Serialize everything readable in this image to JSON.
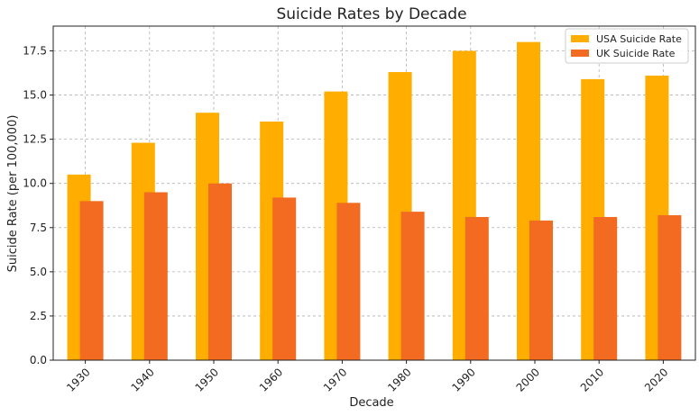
{
  "chart_data": {
    "type": "bar",
    "title": "Suicide Rates by Decade",
    "xlabel": "Decade",
    "ylabel": "Suicide Rate (per 100,000)",
    "categories": [
      "1930",
      "1940",
      "1950",
      "1960",
      "1970",
      "1980",
      "1990",
      "2000",
      "2010",
      "2020"
    ],
    "series": [
      {
        "name": "USA Suicide Rate",
        "color": "#ffae00",
        "values": [
          10.5,
          12.3,
          14.0,
          13.5,
          15.2,
          16.3,
          17.5,
          18.0,
          15.9,
          16.1
        ]
      },
      {
        "name": "UK Suicide Rate",
        "color": "#f26b21",
        "values": [
          9.0,
          9.5,
          10.0,
          9.2,
          8.9,
          8.4,
          8.1,
          7.9,
          8.1,
          8.2
        ]
      }
    ],
    "ylim": [
      0,
      18.9
    ],
    "yticks": [
      "0.0",
      "2.5",
      "5.0",
      "7.5",
      "10.0",
      "12.5",
      "15.0",
      "17.5"
    ],
    "grid": true,
    "legend_position": "top-right"
  }
}
